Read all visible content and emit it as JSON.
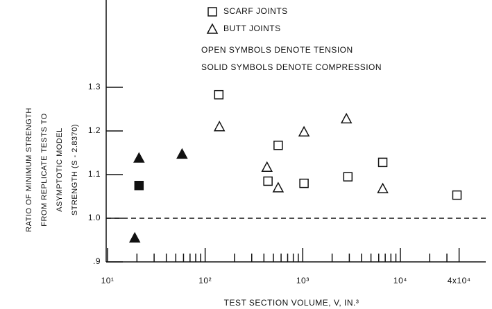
{
  "chart_data": {
    "type": "scatter",
    "xlabel": "TEST SECTION VOLUME, V, IN.³",
    "ylabel": [
      "RATIO OF MINIMUM STRENGTH",
      "FROM REPLICATE TESTS TO",
      "ASYMPTOTIC MODEL",
      "STRENGTH (S - 2.8370)"
    ],
    "notes": [
      "OPEN SYMBOLS DENOTE TENSION",
      "SOLID SYMBOLS DENOTE COMPRESSION"
    ],
    "xscale": "log",
    "xlim": [
      10,
      75000
    ],
    "ylim": [
      0.9,
      1.5
    ],
    "xticks": [
      {
        "value": 10,
        "label": "10¹"
      },
      {
        "value": 100,
        "label": "10²"
      },
      {
        "value": 1000,
        "label": "10³"
      },
      {
        "value": 10000,
        "label": "10⁴"
      },
      {
        "value": 40000,
        "label": "4x10⁴"
      }
    ],
    "xminorticks": [
      20,
      30,
      40,
      50,
      60,
      70,
      80,
      90,
      200,
      300,
      400,
      500,
      600,
      700,
      800,
      900,
      2000,
      3000,
      4000,
      5000,
      6000,
      7000,
      8000,
      9000,
      20000,
      30000
    ],
    "yticks": [
      {
        "value": 0.9,
        "label": ".9"
      },
      {
        "value": 1.0,
        "label": "1.0"
      },
      1.1,
      1.2,
      1.3
    ],
    "reference_line": 1.0,
    "series": [
      {
        "name": "SCARF JOINTS",
        "marker": "square",
        "color": "#111111",
        "x": [
          21,
          138,
          440,
          560,
          1030,
          2900,
          6600,
          38000
        ],
        "values": [
          1.075,
          1.283,
          1.085,
          1.167,
          1.08,
          1.095,
          1.128,
          1.053
        ],
        "filled": [
          true,
          false,
          false,
          false,
          false,
          false,
          false,
          false
        ]
      },
      {
        "name": "BUTT JOINTS",
        "marker": "triangle",
        "color": "#111111",
        "x": [
          19,
          21,
          58,
          140,
          430,
          560,
          1030,
          2800,
          6600
        ],
        "values": [
          0.955,
          1.138,
          1.147,
          1.21,
          1.117,
          1.07,
          1.198,
          1.228,
          1.068
        ],
        "filled": [
          true,
          true,
          true,
          false,
          false,
          false,
          false,
          false,
          false
        ]
      }
    ]
  }
}
